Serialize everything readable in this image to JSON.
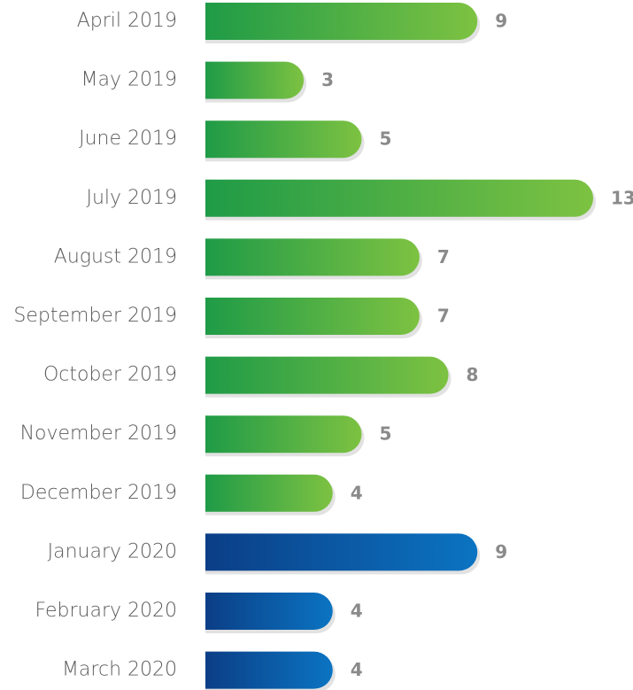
{
  "chart_data": {
    "type": "bar",
    "orientation": "horizontal",
    "categories": [
      "April 2019",
      "May 2019",
      "June 2019",
      "July 2019",
      "August 2019",
      "September 2019",
      "October 2019",
      "November 2019",
      "December 2019",
      "January 2020",
      "February 2020",
      "March 2020"
    ],
    "values": [
      9,
      3,
      5,
      13,
      7,
      7,
      8,
      5,
      4,
      9,
      4,
      4
    ],
    "colors": [
      [
        "#1f9b47",
        "#7dc242"
      ],
      [
        "#1f9b47",
        "#7dc242"
      ],
      [
        "#1f9b47",
        "#7dc242"
      ],
      [
        "#1f9b47",
        "#7dc242"
      ],
      [
        "#1f9b47",
        "#7dc242"
      ],
      [
        "#1f9b47",
        "#7dc242"
      ],
      [
        "#1f9b47",
        "#7dc242"
      ],
      [
        "#1f9b47",
        "#7dc242"
      ],
      [
        "#1f9b47",
        "#7dc242"
      ],
      [
        "#0b3e86",
        "#0b74c2"
      ],
      [
        "#0b3e86",
        "#0b74c2"
      ],
      [
        "#0b3e86",
        "#0b74c2"
      ]
    ],
    "xlim": [
      0,
      13
    ]
  }
}
